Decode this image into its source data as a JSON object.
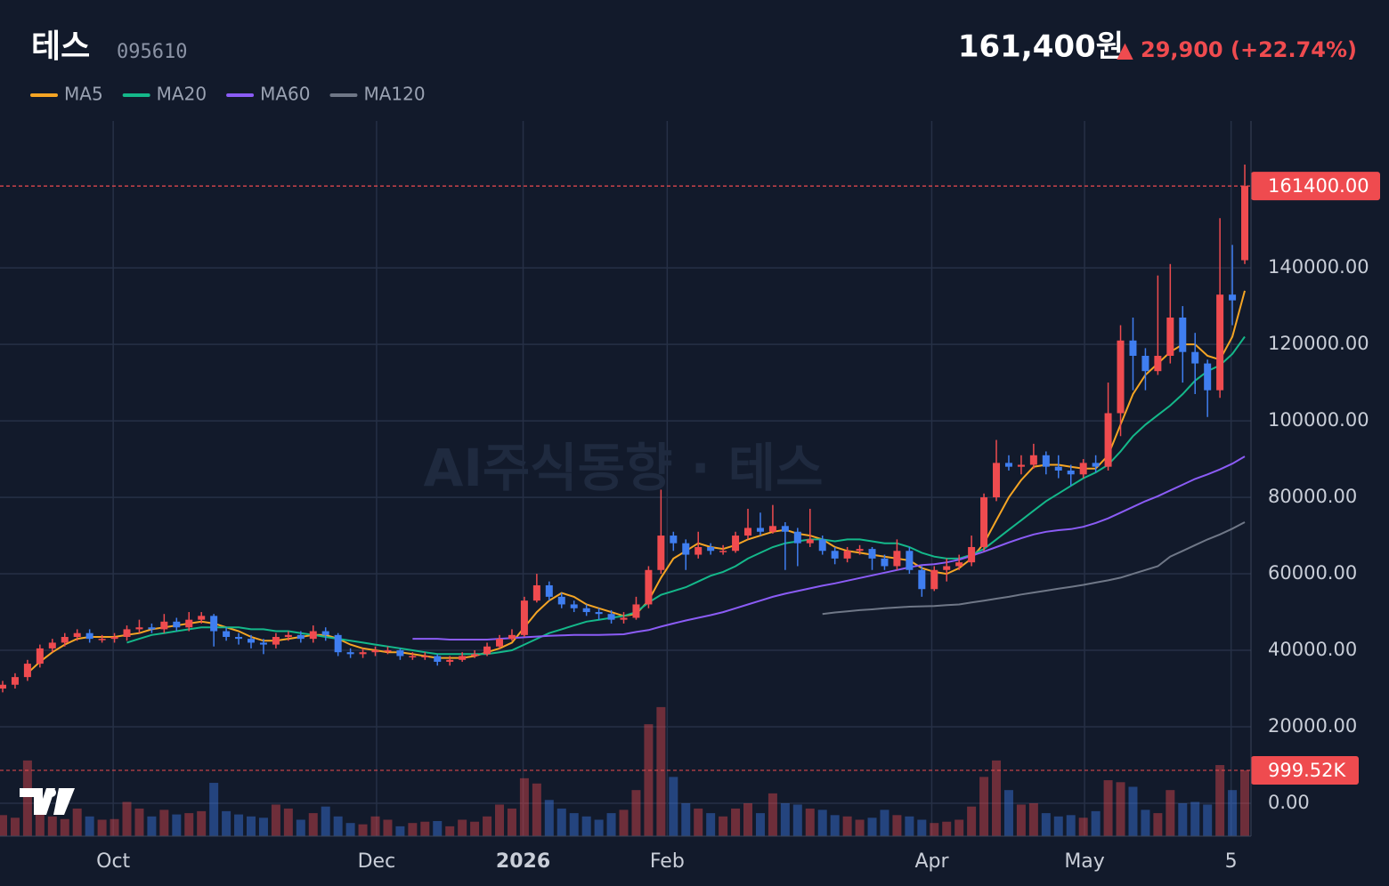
{
  "header": {
    "title": "테스",
    "code": "095610",
    "price": "161,400원",
    "change": "▲ 29,900 (+22.74%)"
  },
  "watermark": "AI주식동향 · 테스",
  "chart_data": {
    "type": "candlestick",
    "up_color": "#ef4b4f",
    "down_color": "#3f7ef0",
    "grid": true,
    "xlim": [
      -0.215,
      100.5
    ],
    "ylim": [
      -8600,
      178400
    ],
    "vol_ylim": [
      0,
      10860000
    ],
    "xticks": [
      {
        "value": 8.9,
        "label": "Oct"
      },
      {
        "value": 30.1,
        "label": "Dec"
      },
      {
        "value": 41.9,
        "label": "2026"
      },
      {
        "value": 53.5,
        "label": "Feb"
      },
      {
        "value": 74.8,
        "label": "Apr"
      },
      {
        "value": 87.1,
        "label": "May"
      },
      {
        "value": 98.9,
        "label": "5"
      }
    ],
    "yticks": [
      {
        "value": 0,
        "label": "0.00"
      },
      {
        "value": 20000,
        "label": "20000.00"
      },
      {
        "value": 40000,
        "label": "40000.00"
      },
      {
        "value": 60000,
        "label": "60000.00"
      },
      {
        "value": 80000,
        "label": "80000.00"
      },
      {
        "value": 100000,
        "label": "100000.00"
      },
      {
        "value": 120000,
        "label": "120000.00"
      },
      {
        "value": 140000,
        "label": "140000.00"
      }
    ],
    "last_price": {
      "value": 161400,
      "label": "161400.00"
    },
    "last_volume": {
      "value": 999520,
      "label": "999.52K"
    },
    "open": [
      30000,
      31000,
      33000,
      36500,
      40500,
      42000,
      43500,
      44500,
      43000,
      43000,
      43500,
      45500,
      46000,
      45500,
      47500,
      46000,
      48000,
      49000,
      45000,
      43500,
      43000,
      42000,
      41500,
      43500,
      44000,
      43000,
      45000,
      44000,
      39500,
      39000,
      39500,
      40000,
      40000,
      38500,
      38500,
      38500,
      37000,
      37500,
      38500,
      39000,
      41000,
      43000,
      44000,
      53000,
      57000,
      54000,
      52000,
      51000,
      50000,
      49500,
      48000,
      48500,
      52000,
      61000,
      70000,
      68000,
      65000,
      67000,
      66000,
      66000,
      70000,
      72000,
      71000,
      72500,
      71000,
      68000,
      69000,
      66000,
      64000,
      66000,
      66500,
      64000,
      62000,
      66000,
      61000,
      56000,
      61000,
      62000,
      63000,
      67000,
      80000,
      89000,
      88000,
      88500,
      91000,
      88000,
      87000,
      86000,
      89000,
      88000,
      102000,
      121000,
      117000,
      113000,
      117000,
      127000,
      118000,
      115000,
      108000,
      133000,
      142000
    ],
    "high": [
      32000,
      34000,
      37500,
      41500,
      43000,
      44500,
      45500,
      45500,
      44000,
      44500,
      46500,
      48000,
      47000,
      49500,
      48500,
      50000,
      50000,
      49500,
      46000,
      44500,
      44000,
      43000,
      44500,
      45000,
      45000,
      46500,
      46000,
      44500,
      40500,
      40500,
      41000,
      41000,
      40500,
      39500,
      39500,
      39000,
      38500,
      39500,
      40000,
      42000,
      44000,
      45500,
      54000,
      60000,
      58000,
      55000,
      53000,
      52000,
      51000,
      50500,
      50000,
      54000,
      62000,
      82000,
      71000,
      69000,
      71000,
      68000,
      67500,
      71000,
      77000,
      76000,
      78000,
      73500,
      72000,
      77000,
      70000,
      67000,
      67000,
      67500,
      67000,
      65000,
      69000,
      67000,
      62000,
      62000,
      64000,
      65000,
      70000,
      81000,
      95000,
      91000,
      91000,
      94000,
      92000,
      91000,
      88500,
      90000,
      91000,
      110000,
      125000,
      127000,
      119000,
      138000,
      141000,
      130000,
      123000,
      116000,
      153000,
      146000,
      167000
    ],
    "low": [
      29000,
      30000,
      32000,
      35500,
      39500,
      41000,
      42500,
      42000,
      42000,
      42000,
      42500,
      44500,
      44500,
      44500,
      45000,
      45000,
      47000,
      41000,
      42500,
      41500,
      40500,
      39000,
      40500,
      42500,
      42000,
      42000,
      42500,
      38500,
      38000,
      38000,
      38500,
      39000,
      37500,
      37500,
      37500,
      36000,
      36000,
      37000,
      38000,
      38500,
      40500,
      42500,
      43500,
      52500,
      53000,
      51000,
      50000,
      49000,
      48000,
      47000,
      47000,
      48000,
      51000,
      60000,
      66000,
      61000,
      64000,
      65000,
      65000,
      65500,
      69000,
      70000,
      70500,
      61000,
      62000,
      67000,
      65000,
      62500,
      63000,
      65000,
      61000,
      61000,
      61000,
      60000,
      54000,
      55500,
      58000,
      61000,
      62000,
      66000,
      79000,
      87000,
      86000,
      87500,
      86000,
      85000,
      83000,
      85000,
      86500,
      87000,
      96000,
      108000,
      108000,
      112000,
      115000,
      110000,
      107000,
      101000,
      106000,
      125000,
      141000
    ],
    "close": [
      31000,
      33000,
      36500,
      40500,
      42000,
      43500,
      44500,
      43000,
      43000,
      43500,
      45500,
      46000,
      45500,
      47500,
      46000,
      48000,
      49000,
      45000,
      43500,
      43000,
      42000,
      41500,
      43500,
      44000,
      43000,
      45000,
      44000,
      39500,
      39000,
      39500,
      40000,
      40000,
      38500,
      38500,
      38500,
      37000,
      37500,
      38500,
      39000,
      41000,
      43000,
      44000,
      53000,
      57000,
      54000,
      52000,
      51000,
      50000,
      49500,
      48000,
      48500,
      52000,
      61000,
      70000,
      68000,
      65000,
      67000,
      66000,
      66000,
      70000,
      72000,
      71000,
      72500,
      71000,
      68000,
      69000,
      66000,
      64000,
      66000,
      66500,
      64000,
      62000,
      66000,
      61000,
      56000,
      61000,
      62000,
      63000,
      67000,
      80000,
      89000,
      88000,
      88500,
      91000,
      88000,
      87000,
      86000,
      89000,
      88000,
      102000,
      121000,
      117000,
      113000,
      117000,
      127000,
      118000,
      115000,
      108000,
      133000,
      131500,
      161400
    ],
    "volume": [
      320000,
      280000,
      1150000,
      400000,
      300000,
      260000,
      420000,
      300000,
      250000,
      260000,
      520000,
      420000,
      300000,
      400000,
      330000,
      350000,
      380000,
      810000,
      380000,
      330000,
      300000,
      280000,
      480000,
      420000,
      250000,
      350000,
      450000,
      300000,
      200000,
      180000,
      300000,
      250000,
      150000,
      200000,
      220000,
      230000,
      150000,
      250000,
      220000,
      300000,
      480000,
      420000,
      880000,
      800000,
      550000,
      420000,
      350000,
      300000,
      250000,
      350000,
      400000,
      700000,
      1700000,
      1960000,
      900000,
      500000,
      420000,
      350000,
      300000,
      420000,
      500000,
      350000,
      650000,
      500000,
      480000,
      420000,
      400000,
      320000,
      300000,
      250000,
      280000,
      400000,
      320000,
      300000,
      250000,
      200000,
      220000,
      250000,
      450000,
      900000,
      1150000,
      700000,
      480000,
      500000,
      350000,
      300000,
      320000,
      280000,
      380000,
      850000,
      820000,
      750000,
      400000,
      350000,
      700000,
      500000,
      520000,
      480000,
      1080000,
      700000,
      999520
    ],
    "series": [
      {
        "name": "MA5",
        "color": "#f5a524",
        "values": [
          null,
          null,
          34000,
          37000,
          39500,
          41500,
          43000,
          43500,
          43500,
          43500,
          44000,
          44500,
          45500,
          46000,
          46500,
          47000,
          47500,
          47000,
          46000,
          45000,
          43500,
          42500,
          42500,
          43000,
          43500,
          44000,
          44000,
          43000,
          41500,
          40500,
          40000,
          39500,
          39500,
          39000,
          38500,
          38000,
          38000,
          38000,
          38500,
          39500,
          40500,
          42000,
          46000,
          50000,
          53000,
          55000,
          54000,
          52000,
          51000,
          50000,
          49000,
          49500,
          53000,
          59000,
          64000,
          66000,
          68000,
          67000,
          66500,
          67500,
          69000,
          70000,
          71000,
          71500,
          70500,
          70000,
          69000,
          67000,
          66000,
          65500,
          65000,
          64500,
          64000,
          63500,
          61500,
          60500,
          60000,
          61500,
          64000,
          68000,
          74000,
          80000,
          84500,
          88000,
          88500,
          88500,
          88000,
          87500,
          87500,
          91000,
          99000,
          107000,
          112000,
          115000,
          118000,
          120000,
          120000,
          117000,
          116000,
          122000,
          134000
        ]
      },
      {
        "name": "MA20",
        "color": "#14b88a",
        "values": [
          null,
          null,
          null,
          null,
          null,
          null,
          null,
          null,
          null,
          null,
          42000,
          43000,
          44000,
          44500,
          45000,
          45500,
          46000,
          46000,
          46000,
          46000,
          45500,
          45500,
          45000,
          45000,
          44500,
          44000,
          43500,
          43000,
          42500,
          42000,
          41500,
          41000,
          40500,
          40000,
          39500,
          39000,
          39000,
          39000,
          39000,
          39000,
          39500,
          40000,
          41500,
          43000,
          44500,
          45500,
          46500,
          47500,
          48000,
          48500,
          49000,
          50000,
          52500,
          54500,
          55500,
          56500,
          58000,
          59500,
          60500,
          62000,
          64000,
          65500,
          67000,
          68000,
          68500,
          69000,
          69000,
          68500,
          69000,
          69000,
          68500,
          68000,
          68000,
          67000,
          65500,
          64500,
          64000,
          64000,
          65000,
          66500,
          69000,
          71500,
          74000,
          76500,
          79000,
          81000,
          83000,
          85000,
          86500,
          88500,
          92000,
          96000,
          99000,
          101500,
          104000,
          107000,
          110500,
          113000,
          114500,
          117500,
          122000
        ]
      },
      {
        "name": "MA60",
        "color": "#8b5cf6",
        "values": [
          null,
          null,
          null,
          null,
          null,
          null,
          null,
          null,
          null,
          null,
          null,
          null,
          null,
          null,
          null,
          null,
          null,
          null,
          null,
          null,
          null,
          null,
          null,
          null,
          null,
          null,
          null,
          null,
          null,
          null,
          null,
          null,
          null,
          43000,
          43000,
          43000,
          42800,
          42800,
          42800,
          42800,
          43000,
          43200,
          43400,
          43600,
          43800,
          43900,
          44000,
          44000,
          44000,
          44100,
          44200,
          44800,
          45300,
          46200,
          47000,
          47800,
          48500,
          49200,
          50000,
          51000,
          52000,
          53000,
          54000,
          54800,
          55500,
          56200,
          56900,
          57500,
          58200,
          58900,
          59600,
          60300,
          61000,
          61700,
          62300,
          62500,
          63000,
          63700,
          64700,
          65800,
          67000,
          68200,
          69300,
          70300,
          71000,
          71400,
          71700,
          72300,
          73300,
          74500,
          76000,
          77500,
          79000,
          80300,
          81800,
          83300,
          84800,
          86000,
          87300,
          88800,
          90700
        ]
      },
      {
        "name": "MA120",
        "color": "#6f7787",
        "values": [
          null,
          null,
          null,
          null,
          null,
          null,
          null,
          null,
          null,
          null,
          null,
          null,
          null,
          null,
          null,
          null,
          null,
          null,
          null,
          null,
          null,
          null,
          null,
          null,
          null,
          null,
          null,
          null,
          null,
          null,
          null,
          null,
          null,
          null,
          null,
          null,
          null,
          null,
          null,
          null,
          null,
          null,
          null,
          null,
          null,
          null,
          null,
          null,
          null,
          null,
          null,
          null,
          null,
          null,
          null,
          null,
          null,
          null,
          null,
          null,
          null,
          null,
          null,
          null,
          null,
          null,
          49500,
          49900,
          50200,
          50500,
          50700,
          51000,
          51200,
          51400,
          51500,
          51600,
          51800,
          52000,
          52500,
          53000,
          53500,
          54000,
          54600,
          55100,
          55600,
          56100,
          56600,
          57100,
          57700,
          58300,
          59000,
          60000,
          61000,
          62000,
          64500,
          66000,
          67500,
          69000,
          70300,
          71800,
          73500
        ]
      }
    ]
  }
}
